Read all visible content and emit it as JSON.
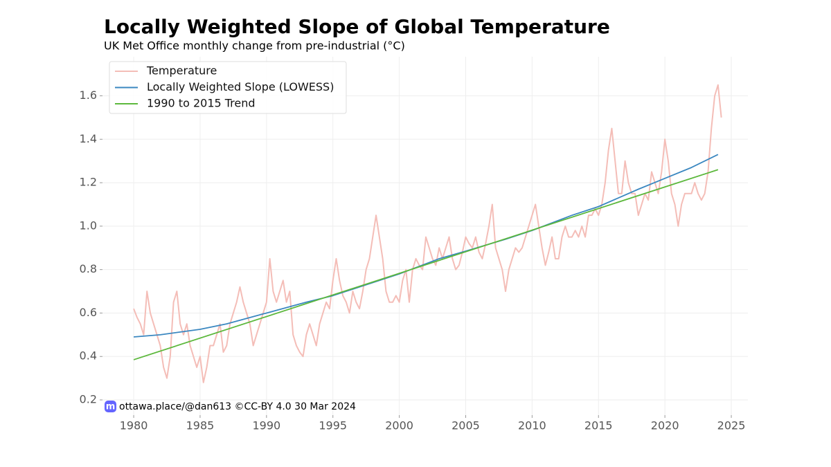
{
  "chart_data": {
    "type": "line",
    "title": "Locally Weighted Slope of Global Temperature",
    "subtitle": "UK Met Office monthly change from pre-industrial (°C)",
    "attribution": "ottawa.place/@dan613 ©CC-BY 4.0  30 Mar 2024",
    "xlim": [
      1977.65,
      2026.25
    ],
    "ylim": [
      0.13,
      1.78
    ],
    "xticks": [
      1980,
      1985,
      1990,
      1995,
      2000,
      2005,
      2010,
      2015,
      2020,
      2025
    ],
    "yticks": [
      0.2,
      0.4,
      0.6,
      0.8,
      {
        "value": 1,
        "label": "1.0"
      },
      1.2,
      1.4,
      1.6
    ],
    "grid": true,
    "legend": "upper left",
    "series": [
      {
        "name": "Temperature",
        "color": "#f4bdb7",
        "x": [
          1980,
          1980.25,
          1980.5,
          1980.75,
          1981,
          1981.25,
          1981.5,
          1981.75,
          1982,
          1982.25,
          1982.5,
          1982.75,
          1983,
          1983.25,
          1983.5,
          1983.75,
          1984,
          1984.25,
          1984.5,
          1984.75,
          1985,
          1985.25,
          1985.5,
          1985.75,
          1986,
          1986.25,
          1986.5,
          1986.75,
          1987,
          1987.25,
          1987.5,
          1987.75,
          1988,
          1988.25,
          1988.5,
          1988.75,
          1989,
          1989.25,
          1989.5,
          1989.75,
          1990,
          1990.25,
          1990.5,
          1990.75,
          1991,
          1991.25,
          1991.5,
          1991.75,
          1992,
          1992.25,
          1992.5,
          1992.75,
          1993,
          1993.25,
          1993.5,
          1993.75,
          1994,
          1994.25,
          1994.5,
          1994.75,
          1995,
          1995.25,
          1995.5,
          1995.75,
          1996,
          1996.25,
          1996.5,
          1996.75,
          1997,
          1997.25,
          1997.5,
          1997.75,
          1998,
          1998.25,
          1998.5,
          1998.75,
          1999,
          1999.25,
          1999.5,
          1999.75,
          2000,
          2000.25,
          2000.5,
          2000.75,
          2001,
          2001.25,
          2001.5,
          2001.75,
          2002,
          2002.25,
          2002.5,
          2002.75,
          2003,
          2003.25,
          2003.5,
          2003.75,
          2004,
          2004.25,
          2004.5,
          2004.75,
          2005,
          2005.25,
          2005.5,
          2005.75,
          2006,
          2006.25,
          2006.5,
          2006.75,
          2007,
          2007.25,
          2007.5,
          2007.75,
          2008,
          2008.25,
          2008.5,
          2008.75,
          2009,
          2009.25,
          2009.5,
          2009.75,
          2010,
          2010.25,
          2010.5,
          2010.75,
          2011,
          2011.25,
          2011.5,
          2011.75,
          2012,
          2012.25,
          2012.5,
          2012.75,
          2013,
          2013.25,
          2013.5,
          2013.75,
          2014,
          2014.25,
          2014.5,
          2014.75,
          2015,
          2015.25,
          2015.5,
          2015.75,
          2016,
          2016.25,
          2016.5,
          2016.75,
          2017,
          2017.25,
          2017.5,
          2017.75,
          2018,
          2018.25,
          2018.5,
          2018.75,
          2019,
          2019.25,
          2019.5,
          2019.75,
          2020,
          2020.25,
          2020.5,
          2020.75,
          2021,
          2021.25,
          2021.5,
          2021.75,
          2022,
          2022.25,
          2022.5,
          2022.75,
          2023,
          2023.25,
          2023.5,
          2023.75,
          2024,
          2024.25
        ],
        "values": [
          0.62,
          0.58,
          0.55,
          0.5,
          0.7,
          0.6,
          0.55,
          0.5,
          0.45,
          0.35,
          0.3,
          0.4,
          0.65,
          0.7,
          0.55,
          0.5,
          0.55,
          0.45,
          0.4,
          0.35,
          0.4,
          0.28,
          0.35,
          0.45,
          0.45,
          0.5,
          0.55,
          0.42,
          0.45,
          0.55,
          0.6,
          0.65,
          0.72,
          0.65,
          0.6,
          0.55,
          0.45,
          0.5,
          0.55,
          0.6,
          0.65,
          0.85,
          0.7,
          0.65,
          0.7,
          0.75,
          0.65,
          0.7,
          0.5,
          0.45,
          0.42,
          0.4,
          0.5,
          0.55,
          0.5,
          0.45,
          0.55,
          0.6,
          0.65,
          0.62,
          0.75,
          0.85,
          0.75,
          0.68,
          0.65,
          0.6,
          0.7,
          0.65,
          0.62,
          0.7,
          0.8,
          0.85,
          0.95,
          1.05,
          0.95,
          0.85,
          0.7,
          0.65,
          0.65,
          0.68,
          0.65,
          0.75,
          0.8,
          0.65,
          0.8,
          0.85,
          0.82,
          0.8,
          0.95,
          0.9,
          0.85,
          0.82,
          0.9,
          0.85,
          0.9,
          0.95,
          0.85,
          0.8,
          0.82,
          0.88,
          0.95,
          0.92,
          0.9,
          0.95,
          0.88,
          0.85,
          0.92,
          1.0,
          1.1,
          0.9,
          0.85,
          0.8,
          0.7,
          0.8,
          0.85,
          0.9,
          0.88,
          0.9,
          0.95,
          1.0,
          1.05,
          1.1,
          1.0,
          0.9,
          0.82,
          0.88,
          0.95,
          0.85,
          0.85,
          0.95,
          1.0,
          0.95,
          0.95,
          0.98,
          0.95,
          1.0,
          0.95,
          1.05,
          1.05,
          1.08,
          1.05,
          1.1,
          1.2,
          1.35,
          1.45,
          1.3,
          1.15,
          1.15,
          1.3,
          1.2,
          1.15,
          1.15,
          1.05,
          1.1,
          1.15,
          1.12,
          1.25,
          1.2,
          1.15,
          1.25,
          1.4,
          1.3,
          1.15,
          1.1,
          1.0,
          1.1,
          1.15,
          1.15,
          1.15,
          1.2,
          1.15,
          1.12,
          1.15,
          1.25,
          1.45,
          1.6,
          1.65,
          1.5
        ]
      },
      {
        "name": "Locally Weighted Slope (LOWESS)",
        "color": "#3a87c0",
        "x": [
          1980,
          1982,
          1985,
          1987,
          1990,
          1993,
          1995,
          1997,
          2000,
          2003,
          2005,
          2008,
          2010,
          2013,
          2015,
          2018,
          2020,
          2022,
          2024
        ],
        "values": [
          0.49,
          0.5,
          0.525,
          0.55,
          0.6,
          0.65,
          0.68,
          0.72,
          0.78,
          0.85,
          0.885,
          0.94,
          0.98,
          1.05,
          1.09,
          1.17,
          1.22,
          1.27,
          1.33
        ]
      },
      {
        "name": "1990 to 2015 Trend",
        "color": "#5cb83c",
        "x": [
          1980,
          2024
        ],
        "values": [
          0.385,
          1.26
        ]
      }
    ]
  }
}
